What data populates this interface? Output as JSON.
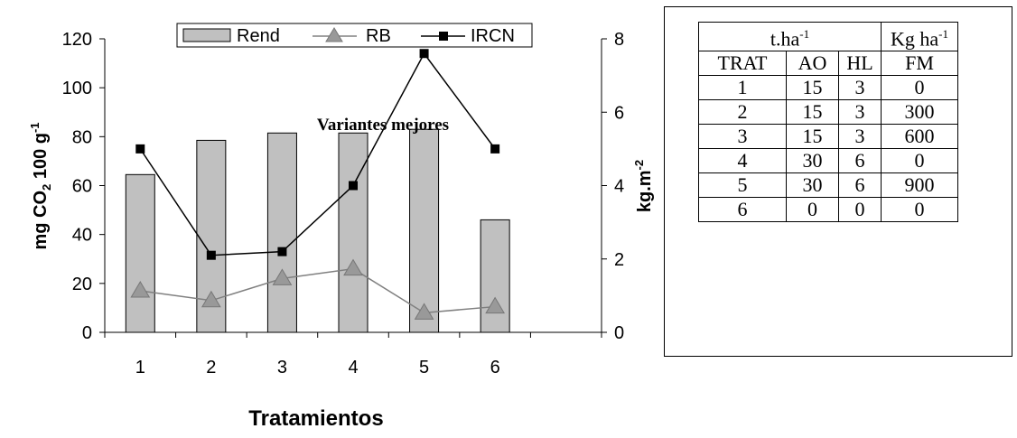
{
  "chart_data": {
    "type": "bar",
    "categories": [
      "1",
      "2",
      "3",
      "4",
      "5",
      "6"
    ],
    "xlabel": "Tratamientos",
    "ylabel": {
      "base": "mg CO",
      "sub": "2",
      "mid": " 100 g",
      "sup": "-1"
    },
    "y2label": {
      "base": "kg.m",
      "sup": "-2"
    },
    "ylim": [
      0,
      120
    ],
    "y2lim": [
      0,
      8
    ],
    "yticks": [
      0,
      20,
      40,
      60,
      80,
      100,
      120
    ],
    "y2ticks": [
      0,
      2,
      4,
      6,
      8
    ],
    "annotation": "Variantes mejores",
    "legend_position": "top",
    "series": [
      {
        "name": "Rend",
        "kind": "bar",
        "axis": "left",
        "color": "#c0c0c0",
        "values": [
          64.5,
          78.5,
          81.5,
          81.5,
          83,
          46
        ]
      },
      {
        "name": "RB",
        "kind": "line",
        "marker": "triangle",
        "axis": "left",
        "color": "#808080",
        "values": [
          17,
          13,
          22,
          26,
          8,
          10.5
        ]
      },
      {
        "name": "IRCN",
        "kind": "line",
        "marker": "square",
        "axis": "right",
        "color": "#000000",
        "values": [
          5,
          2.1,
          2.2,
          4,
          7.6,
          5
        ]
      }
    ]
  },
  "table": {
    "group_headers": [
      {
        "base": "t.ha",
        "sup": "-1"
      },
      {
        "base": "Kg ha",
        "sup": "-1"
      }
    ],
    "columns": [
      "TRAT",
      "AO",
      "HL",
      "FM"
    ],
    "rows": [
      [
        "1",
        "15",
        "3",
        "0"
      ],
      [
        "2",
        "15",
        "3",
        "300"
      ],
      [
        "3",
        "15",
        "3",
        "600"
      ],
      [
        "4",
        "30",
        "6",
        "0"
      ],
      [
        "5",
        "30",
        "6",
        "900"
      ],
      [
        "6",
        "0",
        "0",
        "0"
      ]
    ]
  }
}
